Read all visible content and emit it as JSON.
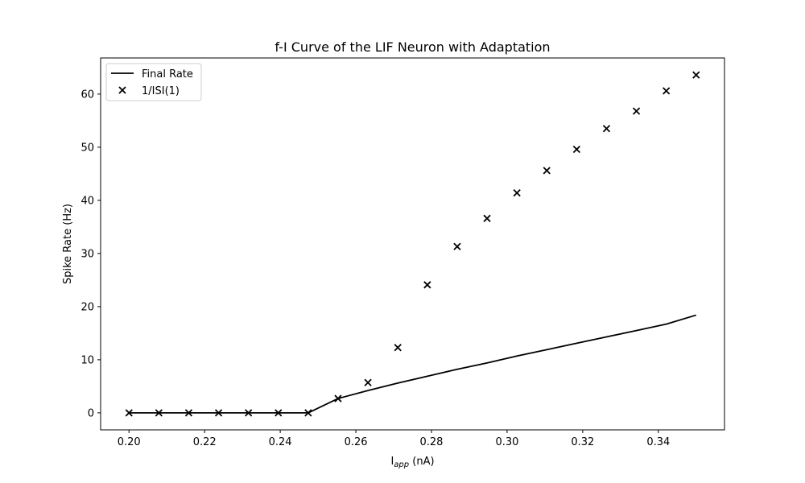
{
  "chart_data": {
    "type": "line",
    "title": "f-I Curve of the LIF Neuron with Adaptation",
    "xlabel": {
      "main": "I",
      "sub": "app",
      "suffix": " (nA)"
    },
    "ylabel": "Spike Rate (Hz)",
    "xlim": [
      0.1925,
      0.3575
    ],
    "ylim": [
      -3.2,
      66.8
    ],
    "xticks": [
      0.2,
      0.22,
      0.24,
      0.26,
      0.28,
      0.3,
      0.32,
      0.34
    ],
    "xtick_labels": [
      "0.20",
      "0.22",
      "0.24",
      "0.26",
      "0.28",
      "0.30",
      "0.32",
      "0.34"
    ],
    "yticks": [
      0,
      10,
      20,
      30,
      40,
      50,
      60
    ],
    "ytick_labels": [
      "0",
      "10",
      "20",
      "30",
      "40",
      "50",
      "60"
    ],
    "grid": false,
    "legend_position": "top-left",
    "series": [
      {
        "name": "Final Rate",
        "style": "line",
        "color": "#000000",
        "x": [
          0.2,
          0.2079,
          0.2158,
          0.2237,
          0.2316,
          0.2395,
          0.2474,
          0.2553,
          0.2632,
          0.2711,
          0.2789,
          0.2868,
          0.2947,
          0.3026,
          0.3105,
          0.3184,
          0.3263,
          0.3342,
          0.3421,
          0.35
        ],
        "y": [
          0,
          0,
          0,
          0,
          0,
          0,
          0,
          2.7,
          4.2,
          5.6,
          6.9,
          8.2,
          9.4,
          10.7,
          11.9,
          13.1,
          14.3,
          15.5,
          16.7,
          18.4
        ]
      },
      {
        "name": "1/ISI(1)",
        "style": "scatter",
        "marker": "x",
        "color": "#000000",
        "x": [
          0.2,
          0.2079,
          0.2158,
          0.2237,
          0.2316,
          0.2395,
          0.2474,
          0.2553,
          0.2632,
          0.2711,
          0.2789,
          0.2868,
          0.2947,
          0.3026,
          0.3105,
          0.3184,
          0.3263,
          0.3342,
          0.3421,
          0.35
        ],
        "y": [
          0,
          0,
          0,
          0,
          0,
          0,
          0,
          2.7,
          5.7,
          12.3,
          24.1,
          31.3,
          36.6,
          41.4,
          45.6,
          49.6,
          53.5,
          56.8,
          60.6,
          63.6
        ]
      }
    ]
  }
}
